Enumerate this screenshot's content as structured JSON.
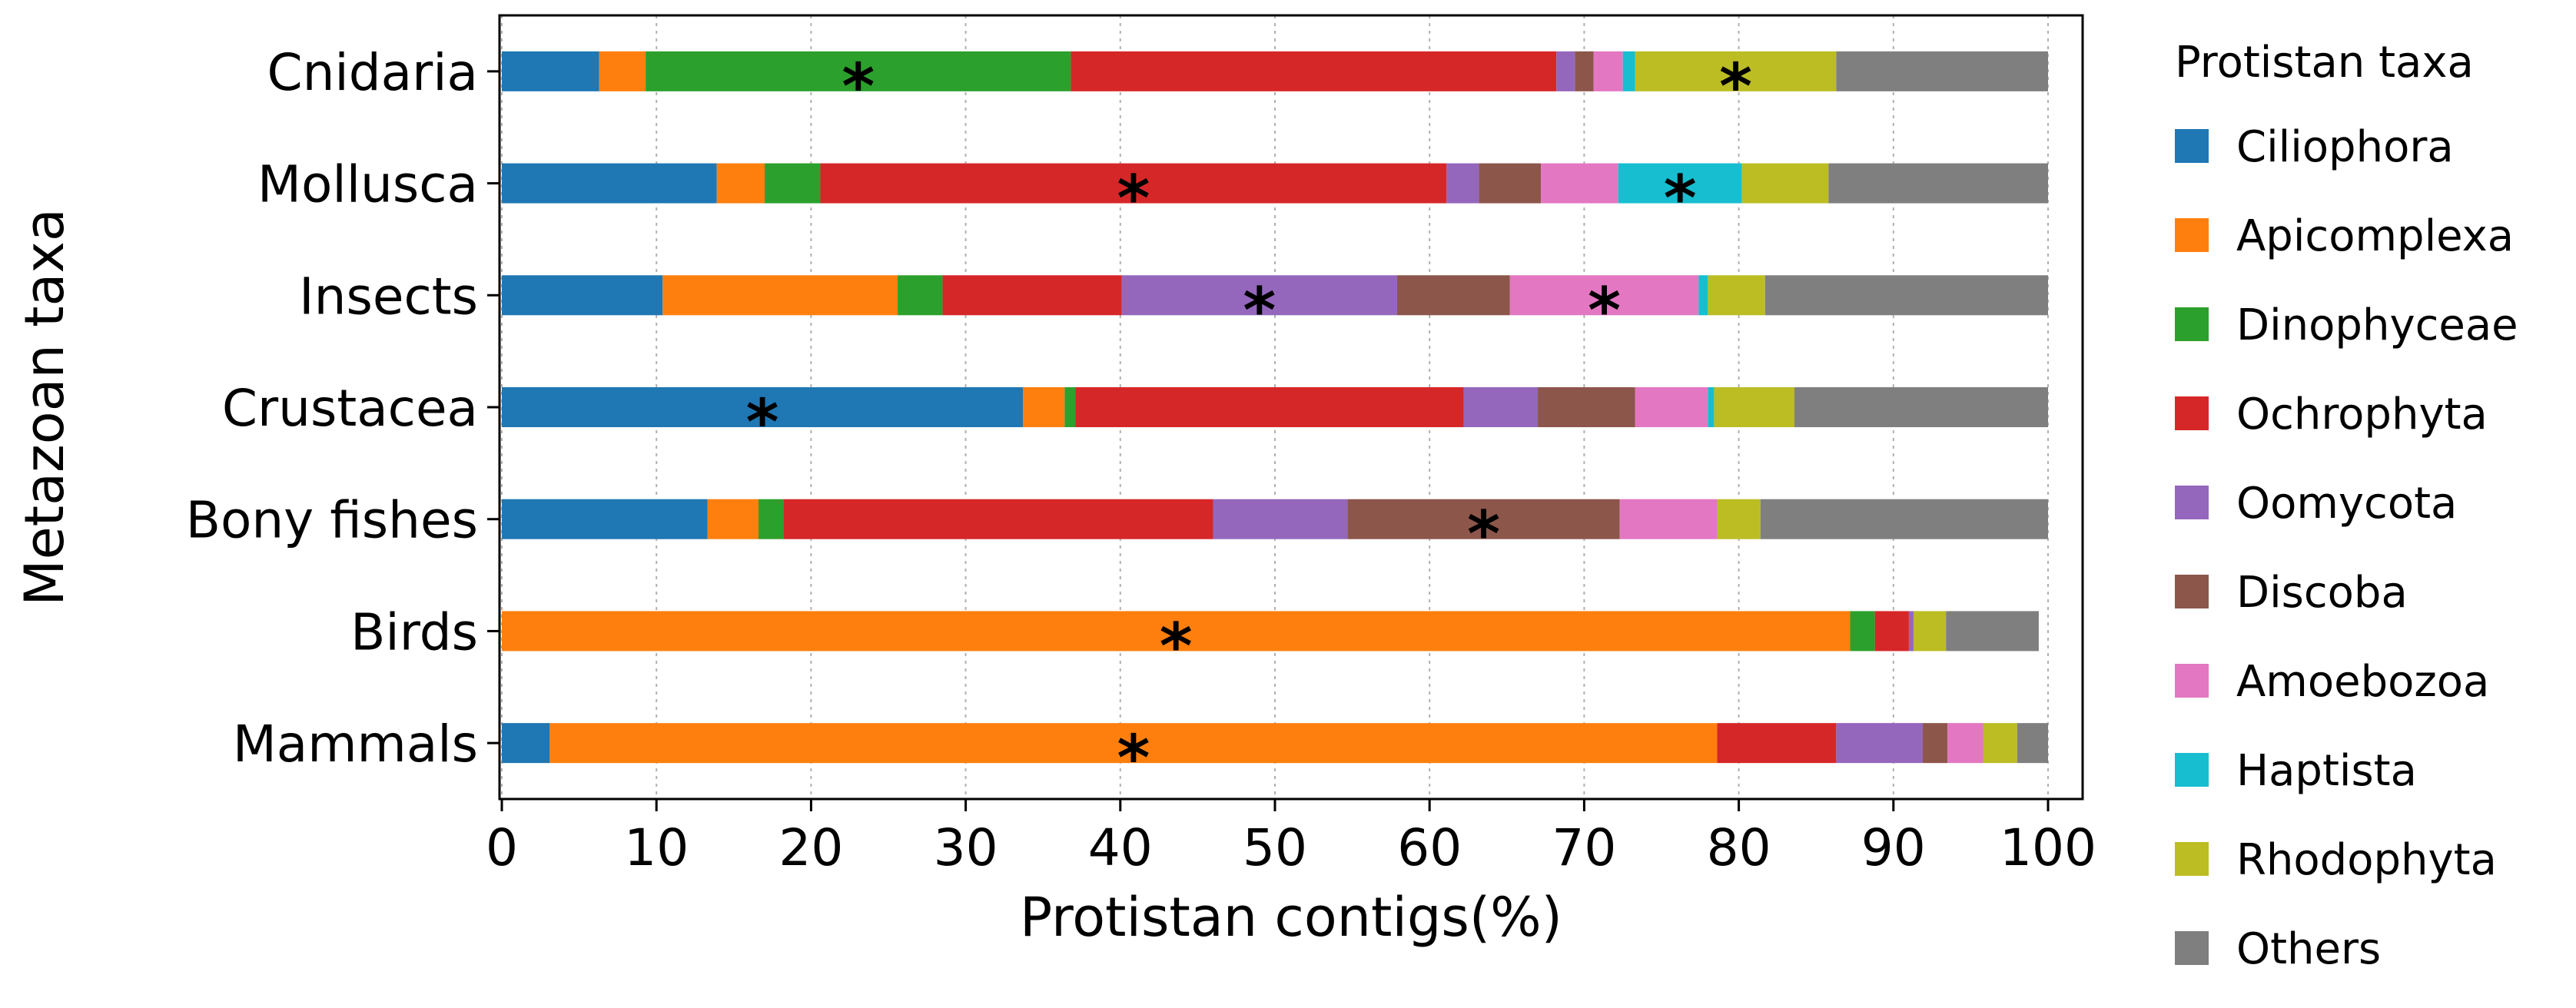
{
  "chart_data": {
    "type": "bar",
    "orientation": "horizontal-stacked",
    "xlabel": "Protistan contigs(%)",
    "ylabel": "Metazoan taxa",
    "xlim": [
      0,
      100
    ],
    "xticks": [
      "0",
      "10",
      "20",
      "30",
      "40",
      "50",
      "60",
      "70",
      "80",
      "90",
      "100"
    ],
    "grid": "vertical-dotted",
    "legend": {
      "title": "Protistan taxa",
      "placement": "right-outside"
    },
    "categories": [
      "Cnidaria",
      "Mollusca",
      "Insects",
      "Crustacea",
      "Bony fishes",
      "Birds",
      "Mammals"
    ],
    "series": [
      {
        "name": "Ciliophora",
        "color": "#1f77b4",
        "values": [
          6.3,
          13.9,
          10.4,
          33.7,
          13.3,
          0.0,
          3.1
        ]
      },
      {
        "name": "Apicomplexa",
        "color": "#ff7f0e",
        "values": [
          3.0,
          3.1,
          15.2,
          2.7,
          3.3,
          87.2,
          75.5
        ]
      },
      {
        "name": "Dinophyceae",
        "color": "#2ca02c",
        "values": [
          27.5,
          3.6,
          2.9,
          0.7,
          1.6,
          1.6,
          0.0
        ]
      },
      {
        "name": "Ochrophyta",
        "color": "#d62728",
        "values": [
          31.4,
          40.5,
          11.6,
          25.1,
          27.8,
          2.2,
          7.7
        ]
      },
      {
        "name": "Oomycota",
        "color": "#9467bd",
        "values": [
          1.2,
          2.1,
          17.8,
          4.8,
          8.7,
          0.3,
          5.6
        ]
      },
      {
        "name": "Discoba",
        "color": "#8c564b",
        "values": [
          1.2,
          4.0,
          7.3,
          6.3,
          17.6,
          0.0,
          1.6
        ]
      },
      {
        "name": "Amoebozoa",
        "color": "#e377c2",
        "values": [
          1.9,
          5.0,
          12.2,
          4.7,
          6.3,
          0.0,
          2.3
        ]
      },
      {
        "name": "Haptista",
        "color": "#17becf",
        "values": [
          0.8,
          8.0,
          0.6,
          0.4,
          0.0,
          0.0,
          0.0
        ]
      },
      {
        "name": "Rhodophyta",
        "color": "#bcbd22",
        "values": [
          13.0,
          5.6,
          3.7,
          5.2,
          2.8,
          2.1,
          2.2
        ]
      },
      {
        "name": "Others",
        "color": "#7f7f7f",
        "values": [
          13.7,
          14.2,
          18.3,
          16.4,
          18.6,
          6.0,
          2.0
        ]
      }
    ],
    "annotations": [
      {
        "category": "Cnidaria",
        "series": "Dinophyceae",
        "text": "*"
      },
      {
        "category": "Cnidaria",
        "series": "Rhodophyta",
        "text": "*"
      },
      {
        "category": "Mollusca",
        "series": "Ochrophyta",
        "text": "*"
      },
      {
        "category": "Mollusca",
        "series": "Haptista",
        "text": "*"
      },
      {
        "category": "Insects",
        "series": "Oomycota",
        "text": "*"
      },
      {
        "category": "Insects",
        "series": "Amoebozoa",
        "text": "*"
      },
      {
        "category": "Crustacea",
        "series": "Ciliophora",
        "text": "*"
      },
      {
        "category": "Bony fishes",
        "series": "Discoba",
        "text": "*"
      },
      {
        "category": "Birds",
        "series": "Apicomplexa",
        "text": "*"
      },
      {
        "category": "Mammals",
        "series": "Apicomplexa",
        "text": "*"
      }
    ]
  }
}
